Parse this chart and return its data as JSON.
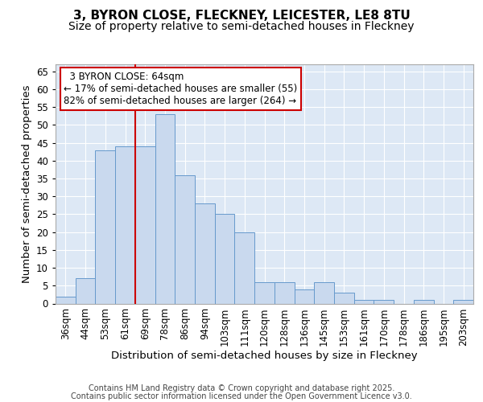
{
  "title1": "3, BYRON CLOSE, FLECKNEY, LEICESTER, LE8 8TU",
  "title2": "Size of property relative to semi-detached houses in Fleckney",
  "xlabel": "Distribution of semi-detached houses by size in Fleckney",
  "ylabel": "Number of semi-detached properties",
  "categories": [
    "36sqm",
    "44sqm",
    "53sqm",
    "61sqm",
    "69sqm",
    "78sqm",
    "86sqm",
    "94sqm",
    "103sqm",
    "111sqm",
    "120sqm",
    "128sqm",
    "136sqm",
    "145sqm",
    "153sqm",
    "161sqm",
    "170sqm",
    "178sqm",
    "186sqm",
    "195sqm",
    "203sqm"
  ],
  "values": [
    2,
    7,
    43,
    44,
    44,
    53,
    36,
    28,
    25,
    20,
    6,
    6,
    4,
    6,
    3,
    1,
    1,
    0,
    1,
    0,
    1
  ],
  "bar_color": "#c9d9ee",
  "bar_edge_color": "#6699cc",
  "subject_label": "3 BYRON CLOSE: 64sqm",
  "pct_smaller": 17,
  "pct_larger": 82,
  "n_smaller": 55,
  "n_larger": 264,
  "vline_color": "#cc0000",
  "ylim": [
    0,
    67
  ],
  "yticks": [
    0,
    5,
    10,
    15,
    20,
    25,
    30,
    35,
    40,
    45,
    50,
    55,
    60,
    65
  ],
  "bg_color": "#dde8f5",
  "fig_color": "#ffffff",
  "footer1": "Contains HM Land Registry data © Crown copyright and database right 2025.",
  "footer2": "Contains public sector information licensed under the Open Government Licence v3.0.",
  "grid_color": "#ffffff",
  "title_fontsize": 11,
  "subtitle_fontsize": 10,
  "axis_label_fontsize": 9.5,
  "tick_fontsize": 8.5,
  "annotation_fontsize": 8.5,
  "footer_fontsize": 7,
  "vline_x_index": 3.5
}
